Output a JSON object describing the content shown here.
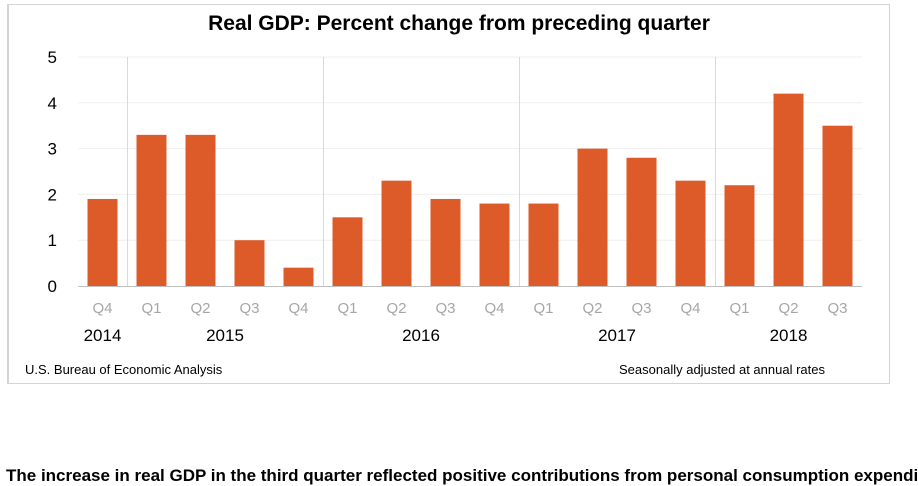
{
  "chart_data": {
    "type": "bar",
    "title": "Real GDP:  Percent change from preceding quarter",
    "categories": [
      "Q4",
      "Q1",
      "Q2",
      "Q3",
      "Q4",
      "Q1",
      "Q2",
      "Q3",
      "Q4",
      "Q1",
      "Q2",
      "Q3",
      "Q4",
      "Q1",
      "Q2",
      "Q3"
    ],
    "years": [
      {
        "label": "2014",
        "quarters": [
          "Q4"
        ]
      },
      {
        "label": "2015",
        "quarters": [
          "Q1",
          "Q2",
          "Q3",
          "Q4"
        ]
      },
      {
        "label": "2016",
        "quarters": [
          "Q1",
          "Q2",
          "Q3",
          "Q4"
        ]
      },
      {
        "label": "2017",
        "quarters": [
          "Q1",
          "Q2",
          "Q3",
          "Q4"
        ]
      },
      {
        "label": "2018",
        "quarters": [
          "Q1",
          "Q2",
          "Q3"
        ]
      }
    ],
    "values": [
      1.9,
      3.3,
      3.3,
      1.0,
      0.4,
      1.5,
      2.3,
      1.9,
      1.8,
      1.8,
      3.0,
      2.8,
      2.3,
      2.2,
      4.2,
      3.5
    ],
    "ylim": [
      0,
      5
    ],
    "yticks": [
      "0",
      "1",
      "2",
      "3",
      "4",
      "5"
    ],
    "xlabel": "",
    "ylabel": "",
    "grid": true,
    "bar_color": "#dc5b28",
    "source": "U.S. Bureau of Economic Analysis",
    "note": "Seasonally adjusted at annual rates"
  },
  "body_text": "The increase in real GDP in the third quarter reflected positive contributions from personal consumption expenditures"
}
